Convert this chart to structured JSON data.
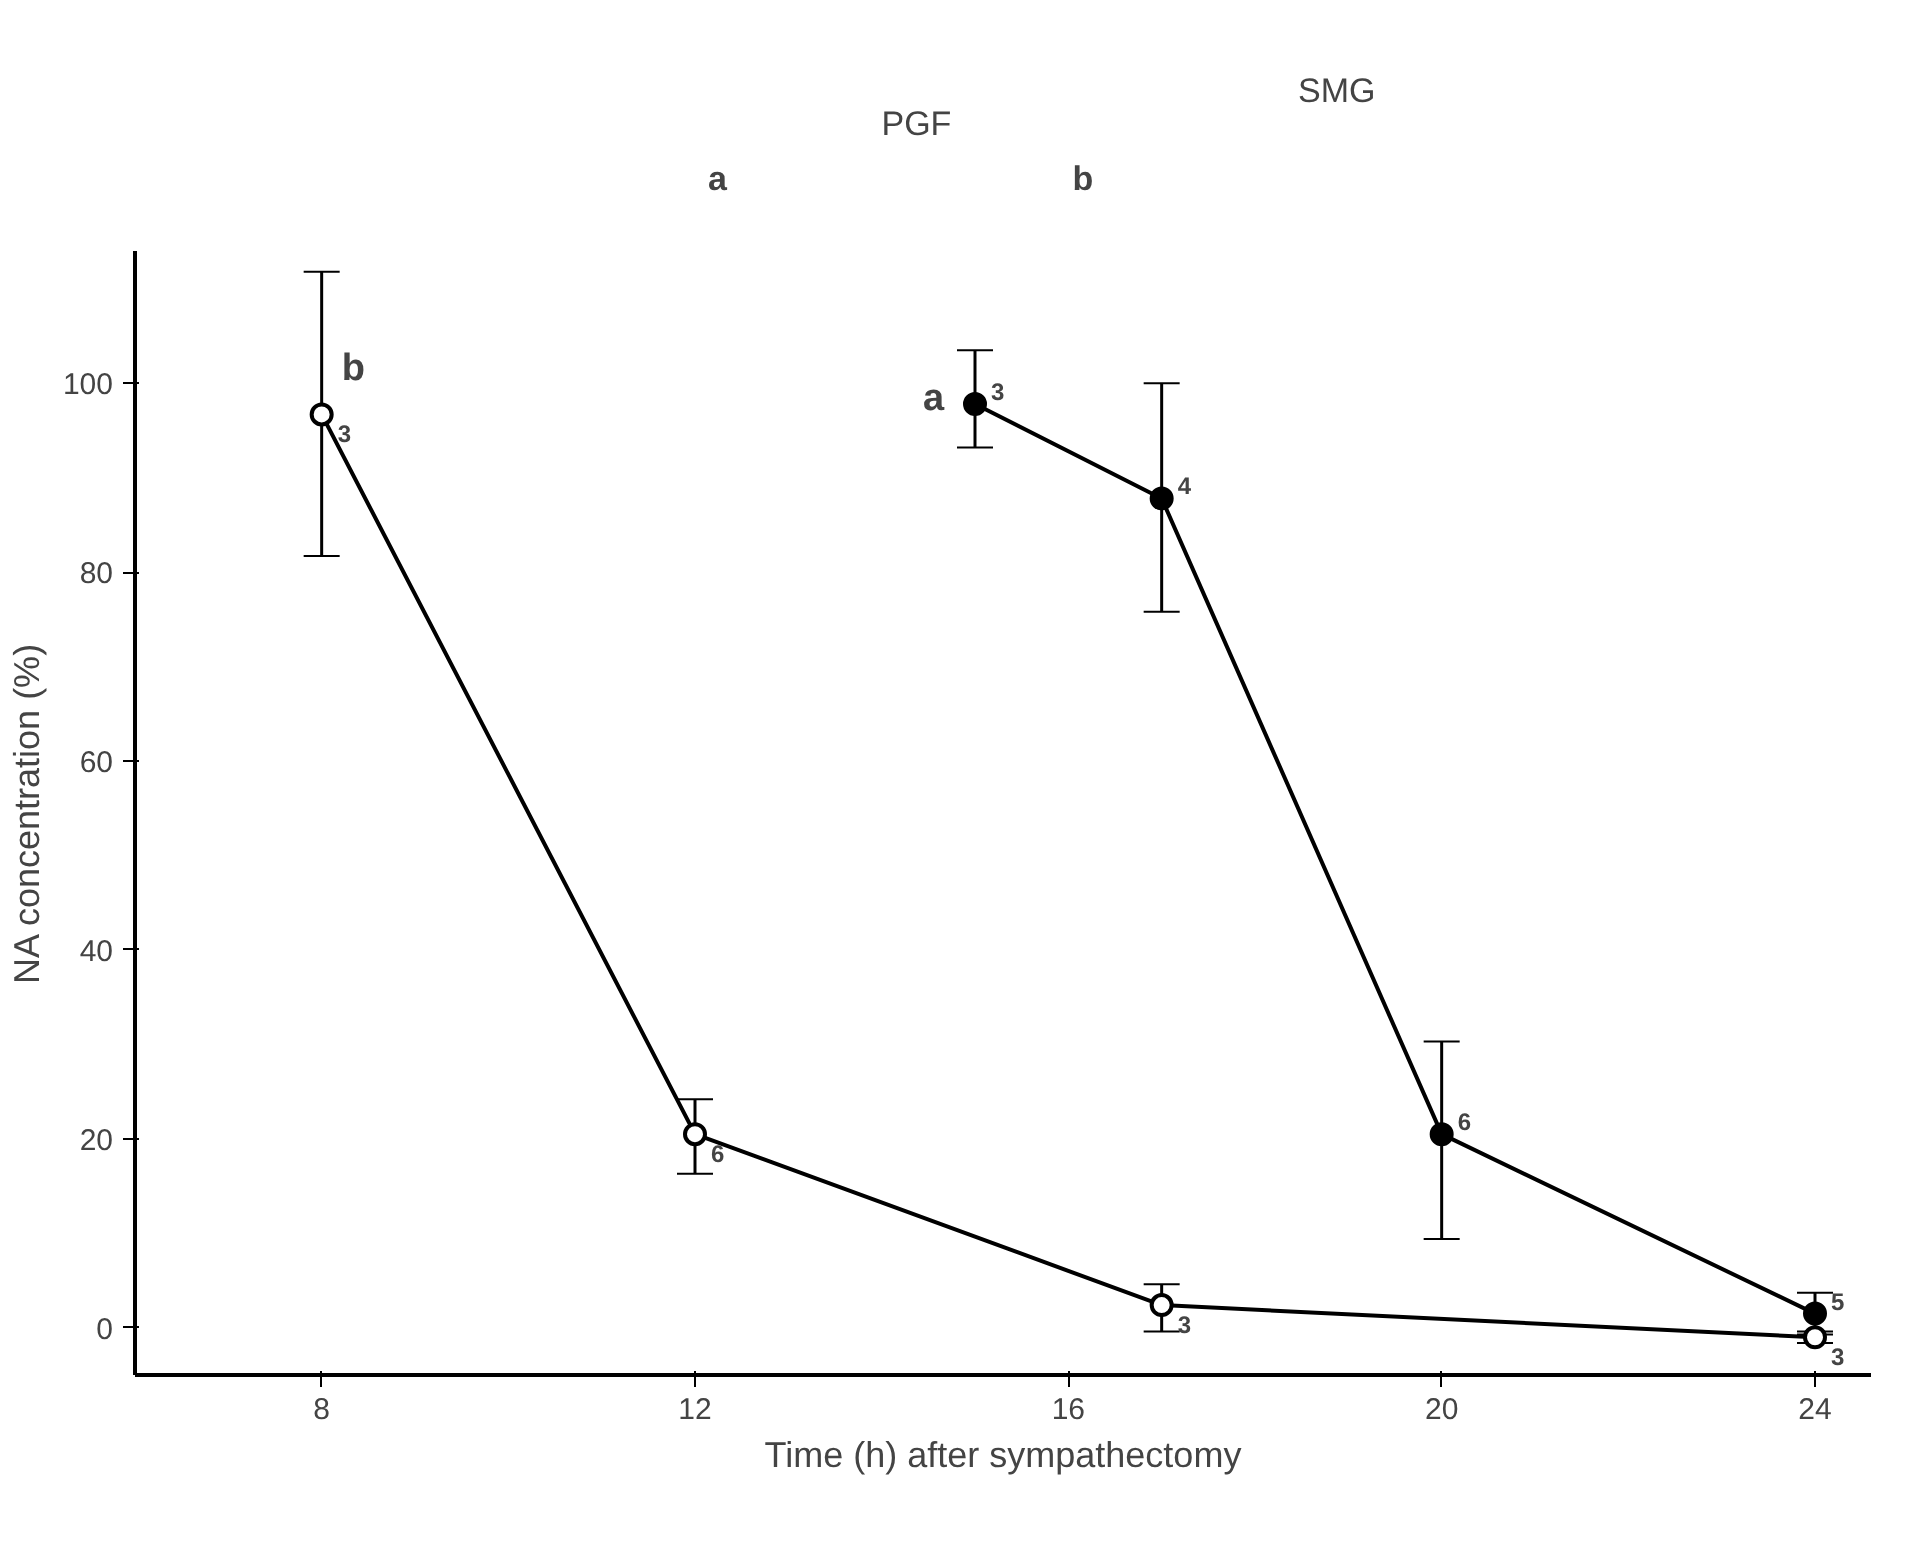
{
  "chart_data": {
    "type": "line",
    "xlabel": "Time (h) after sympathectomy",
    "ylabel": "NA concentration (%)",
    "xlim": [
      6,
      24.6
    ],
    "ylim": [
      -5,
      114
    ],
    "xticks": [
      8,
      12,
      16,
      20,
      24
    ],
    "yticks": [
      0,
      20,
      40,
      60,
      80,
      100
    ],
    "grid": false,
    "marker": "circle",
    "series": [
      {
        "name": "b",
        "color": "#000000",
        "x": [
          8,
          12,
          17,
          24
        ],
        "values": [
          96.7,
          20.5,
          2.4,
          -1
        ],
        "errors": [
          [
            81.7,
            111.8
          ],
          [
            16.3,
            24.2
          ],
          [
            -0.4,
            4.6
          ],
          0.6
        ]
      },
      {
        "name": "a",
        "color": "#000000",
        "x": [
          15,
          17,
          20,
          24
        ],
        "values": [
          97.8,
          87.8,
          20.5,
          1.5
        ],
        "errors": [
          [
            93.2,
            103.5
          ],
          [
            75.8,
            100
          ],
          [
            9.4,
            30.3
          ],
          2.2
        ]
      }
    ],
    "annotations": [
      "a",
      "PGF",
      "b",
      "SMG",
      {
        "text": "3",
        "x": 8,
        "y": 96.7
      },
      {
        "text": "6",
        "x": 12,
        "y": 20.5
      },
      {
        "text": "3",
        "x": 17,
        "y": 2.4
      },
      {
        "text": "3",
        "x": 24,
        "y": -1
      },
      {
        "text": "3",
        "x": 15,
        "y": 97.8
      },
      {
        "text": "4",
        "x": 17,
        "y": 87.8
      },
      {
        "text": "6",
        "x": 20,
        "y": 20.5
      },
      {
        "text": "5",
        "x": 24,
        "y": 1.5
      }
    ]
  }
}
